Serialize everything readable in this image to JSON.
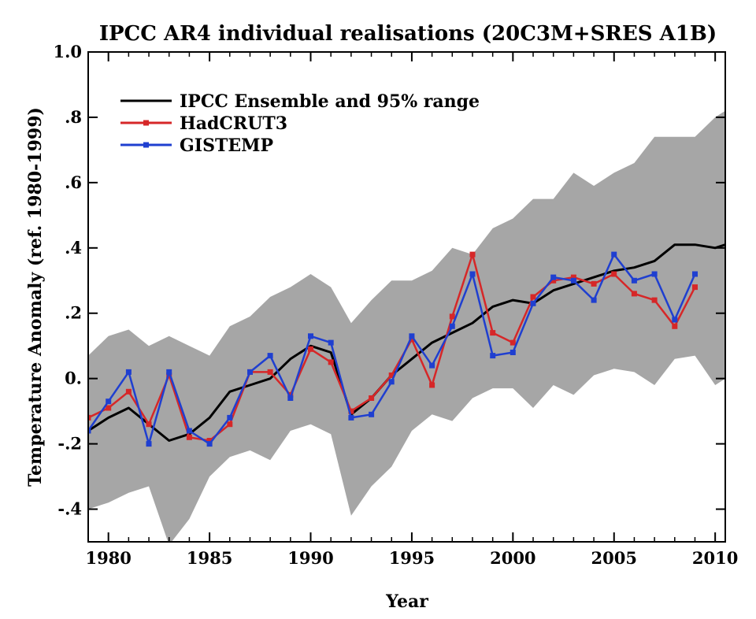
{
  "chart_data": {
    "type": "line",
    "title": "IPCC AR4 individual realisations (20C3M+SRES A1B)",
    "xlabel": "Year",
    "ylabel": "Temperature Anomaly (ref. 1980-1999)",
    "xlim": [
      1979,
      2010.5
    ],
    "ylim": [
      -0.5,
      1.0
    ],
    "xticks": [
      1980,
      1985,
      1990,
      1995,
      2000,
      2005,
      2010
    ],
    "xtick_labels": [
      "1980",
      "1985",
      "1990",
      "1995",
      "2000",
      "2005",
      "2010"
    ],
    "yticks": [
      -0.4,
      -0.2,
      0.0,
      0.2,
      0.4,
      0.6,
      0.8,
      1.0
    ],
    "ytick_labels": [
      "-.4",
      "-.2",
      "0.",
      ".2",
      ".4",
      ".6",
      ".8",
      "1.0"
    ],
    "grid": false,
    "legend_position": "top-left",
    "colors": {
      "ensemble": "#000000",
      "band": "#a6a6a6",
      "hadcrut": "#d62728",
      "gistemp": "#1f3fd0"
    },
    "band": {
      "name": "95% range",
      "x": [
        1979,
        1980,
        1981,
        1982,
        1983,
        1984,
        1985,
        1986,
        1987,
        1988,
        1989,
        1990,
        1991,
        1992,
        1993,
        1994,
        1995,
        1996,
        1997,
        1998,
        1999,
        2000,
        2001,
        2002,
        2003,
        2004,
        2005,
        2006,
        2007,
        2008,
        2009,
        2010,
        2010.5
      ],
      "upper": [
        0.07,
        0.13,
        0.15,
        0.1,
        0.13,
        0.1,
        0.07,
        0.16,
        0.19,
        0.25,
        0.28,
        0.32,
        0.28,
        0.17,
        0.24,
        0.3,
        0.3,
        0.33,
        0.4,
        0.38,
        0.46,
        0.49,
        0.55,
        0.55,
        0.63,
        0.59,
        0.63,
        0.66,
        0.74,
        0.74,
        0.74,
        0.8,
        0.82
      ],
      "lower": [
        -0.4,
        -0.38,
        -0.35,
        -0.33,
        -0.51,
        -0.43,
        -0.3,
        -0.24,
        -0.22,
        -0.25,
        -0.16,
        -0.14,
        -0.17,
        -0.42,
        -0.33,
        -0.27,
        -0.16,
        -0.11,
        -0.13,
        -0.06,
        -0.03,
        -0.03,
        -0.09,
        -0.02,
        -0.05,
        0.01,
        0.03,
        0.02,
        -0.02,
        0.06,
        0.07,
        -0.02,
        0.0
      ]
    },
    "series": [
      {
        "name": "IPCC Ensemble and 95% range",
        "x": [
          1979,
          1980,
          1981,
          1982,
          1983,
          1984,
          1985,
          1986,
          1987,
          1988,
          1989,
          1990,
          1991,
          1992,
          1993,
          1994,
          1995,
          1996,
          1997,
          1998,
          1999,
          2000,
          2001,
          2002,
          2003,
          2004,
          2005,
          2006,
          2007,
          2008,
          2009,
          2010,
          2010.5
        ],
        "y": [
          -0.16,
          -0.12,
          -0.09,
          -0.14,
          -0.19,
          -0.17,
          -0.12,
          -0.04,
          -0.02,
          0.0,
          0.06,
          0.1,
          0.08,
          -0.11,
          -0.06,
          0.01,
          0.06,
          0.11,
          0.14,
          0.17,
          0.22,
          0.24,
          0.23,
          0.27,
          0.29,
          0.31,
          0.33,
          0.34,
          0.36,
          0.41,
          0.41,
          0.4,
          0.41
        ],
        "markers": false
      },
      {
        "name": "HadCRUT3",
        "x": [
          1979,
          1980,
          1981,
          1982,
          1983,
          1984,
          1985,
          1986,
          1987,
          1988,
          1989,
          1990,
          1991,
          1992,
          1993,
          1994,
          1995,
          1996,
          1997,
          1998,
          1999,
          2000,
          2001,
          2002,
          2003,
          2004,
          2005,
          2006,
          2007,
          2008,
          2009
        ],
        "y": [
          -0.12,
          -0.09,
          -0.04,
          -0.14,
          0.01,
          -0.18,
          -0.19,
          -0.14,
          0.02,
          0.02,
          -0.05,
          0.09,
          0.05,
          -0.1,
          -0.06,
          0.01,
          0.12,
          -0.02,
          0.19,
          0.38,
          0.14,
          0.11,
          0.25,
          0.3,
          0.31,
          0.29,
          0.32,
          0.26,
          0.24,
          0.16,
          0.28
        ],
        "markers": true
      },
      {
        "name": "GISTEMP",
        "x": [
          1979,
          1980,
          1981,
          1982,
          1983,
          1984,
          1985,
          1986,
          1987,
          1988,
          1989,
          1990,
          1991,
          1992,
          1993,
          1994,
          1995,
          1996,
          1997,
          1998,
          1999,
          2000,
          2001,
          2002,
          2003,
          2004,
          2005,
          2006,
          2007,
          2008,
          2009
        ],
        "y": [
          -0.16,
          -0.07,
          0.02,
          -0.2,
          0.02,
          -0.16,
          -0.2,
          -0.12,
          0.02,
          0.07,
          -0.06,
          0.13,
          0.11,
          -0.12,
          -0.11,
          -0.01,
          0.13,
          0.04,
          0.16,
          0.32,
          0.07,
          0.08,
          0.23,
          0.31,
          0.3,
          0.24,
          0.38,
          0.3,
          0.32,
          0.18,
          0.32
        ],
        "markers": true
      }
    ]
  }
}
